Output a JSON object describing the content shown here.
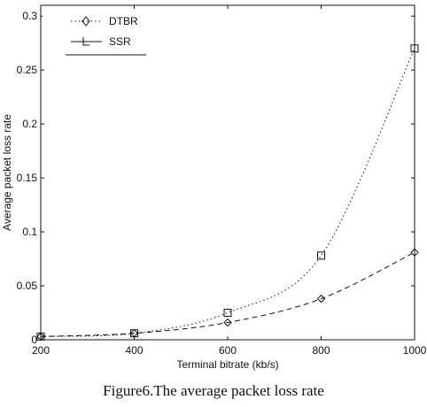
{
  "chart_data": {
    "type": "line",
    "xlabel": "Terminal bitrate (kb/s)",
    "ylabel": "Average packet loss rate",
    "x": [
      200,
      400,
      600,
      800,
      1000
    ],
    "xticks": [
      "200",
      "400",
      "600",
      "800",
      "1000"
    ],
    "yticks": [
      "0",
      "0.05",
      "0.1",
      "0.15",
      "0.2",
      "0.25",
      "0.3"
    ],
    "ytick_values": [
      0,
      0.05,
      0.1,
      0.15,
      0.2,
      0.25,
      0.3
    ],
    "xlim": [
      200,
      1000
    ],
    "ylim": [
      0,
      0.31
    ],
    "grid": false,
    "legend_position": "top-left",
    "series": [
      {
        "name": "DTBR",
        "values": [
          0.003,
          0.006,
          0.025,
          0.078,
          0.27
        ],
        "style": "dotted",
        "marker": "square",
        "color": "#111111"
      },
      {
        "name": "SSR",
        "values": [
          0.003,
          0.006,
          0.016,
          0.038,
          0.081
        ],
        "style": "dashed",
        "marker": "diamond",
        "color": "#111111"
      }
    ]
  },
  "caption": "Figure6.The average packet loss rate"
}
